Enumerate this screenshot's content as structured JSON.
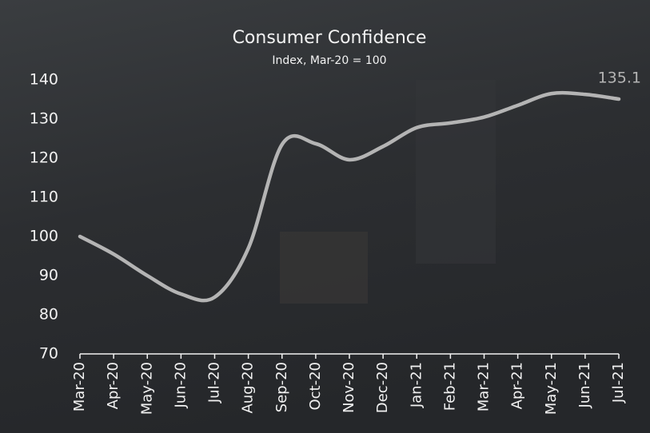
{
  "chart_data": {
    "type": "line",
    "title": "Consumer Confidence",
    "subtitle": "Index, Mar-20 = 100",
    "categories": [
      "Mar-20",
      "Apr-20",
      "May-20",
      "Jun-20",
      "Jul-20",
      "Aug-20",
      "Sep-20",
      "Oct-20",
      "Nov-20",
      "Dec-20",
      "Jan-21",
      "Feb-21",
      "Mar-21",
      "Apr-21",
      "May-21",
      "Jun-21",
      "Jul-21"
    ],
    "series": [
      {
        "name": "Consumer Confidence",
        "color": "#b4b4b4",
        "values": [
          100,
          95.5,
          90,
          85.3,
          84.5,
          97,
          123.5,
          123.7,
          119.6,
          123,
          127.8,
          129,
          130.5,
          133.5,
          136.5,
          136.3,
          135.1
        ]
      }
    ],
    "ylim": [
      70,
      140
    ],
    "yticks": [
      70,
      80,
      90,
      100,
      110,
      120,
      130,
      140
    ],
    "grid": false
  }
}
